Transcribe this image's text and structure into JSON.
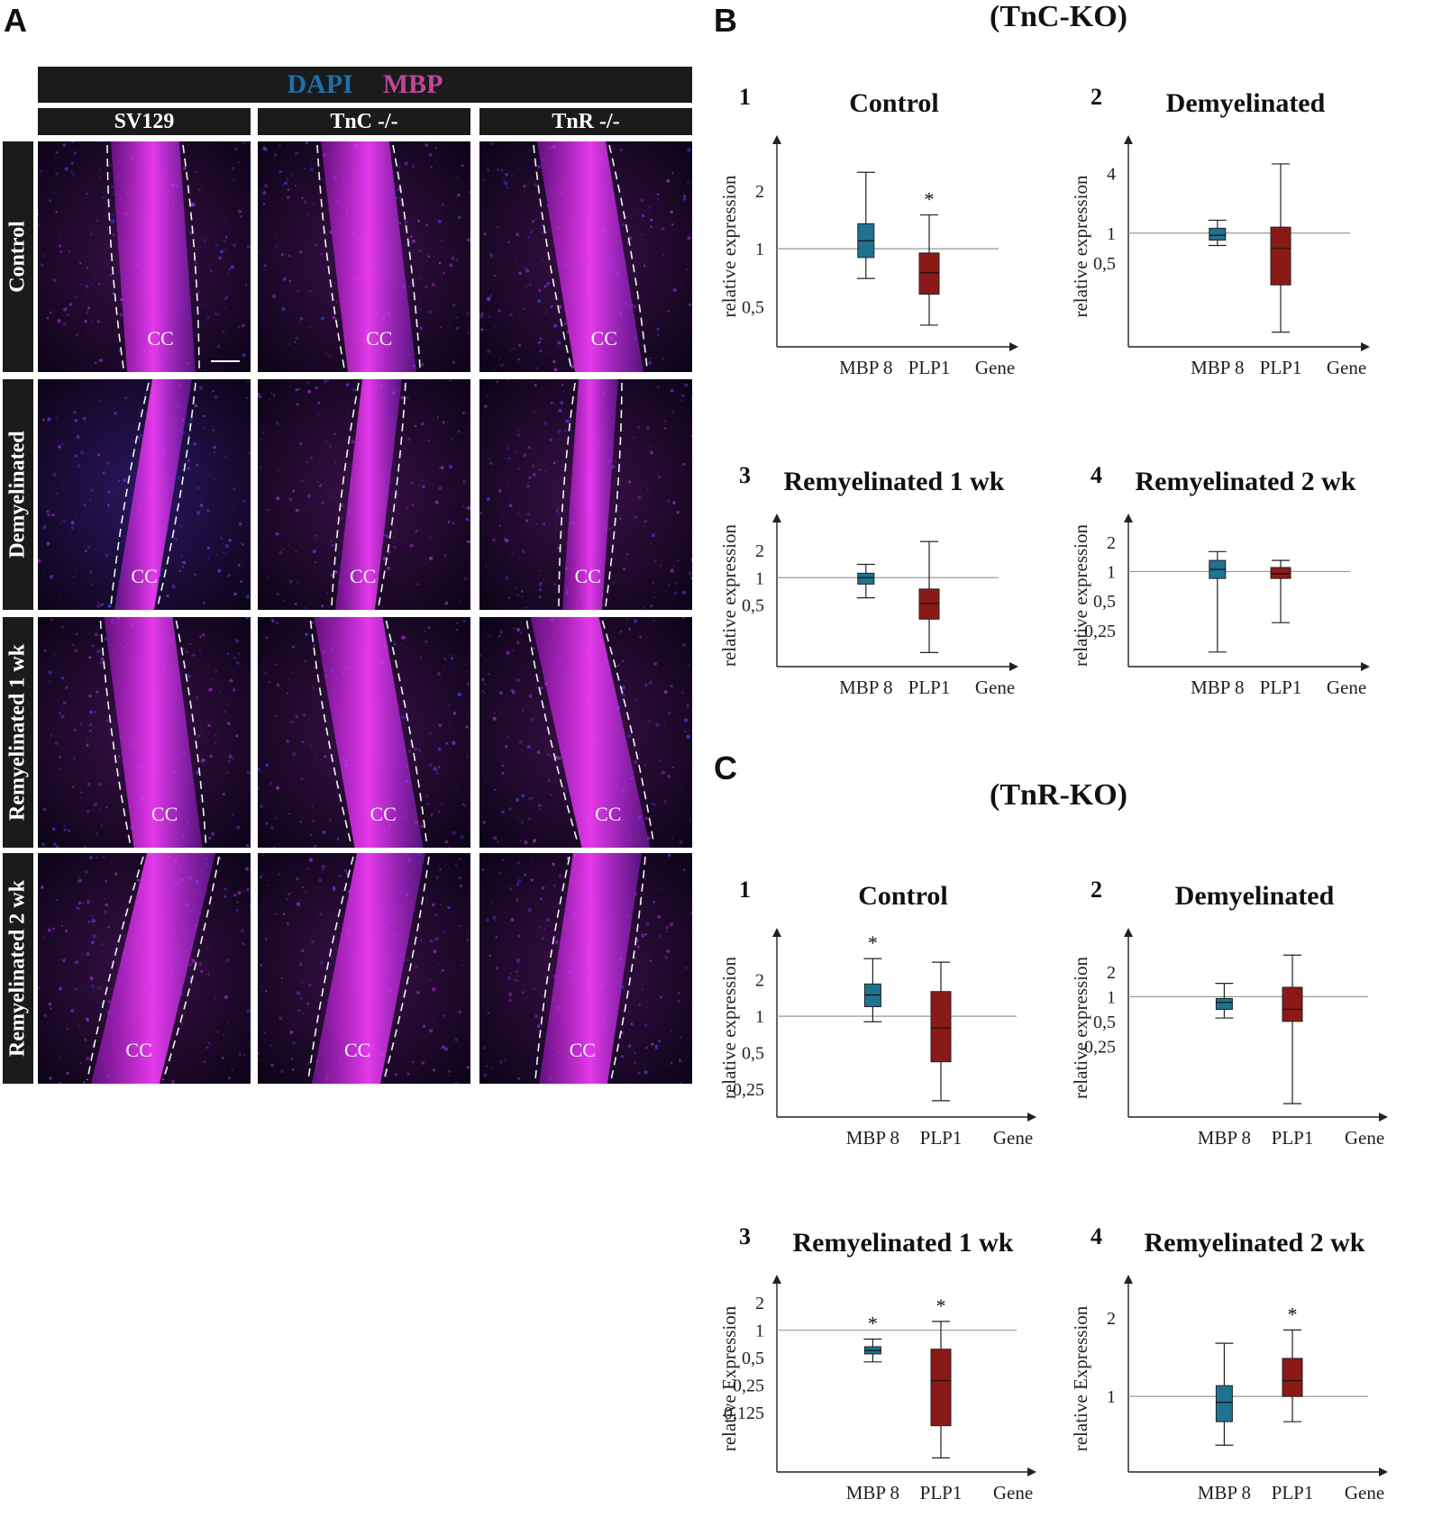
{
  "panel_a": {
    "letter": "A",
    "legend": {
      "dapi": "DAPI",
      "mbp": "MBP"
    },
    "columns": [
      "SV129",
      "TnC -/-",
      "TnR -/-"
    ],
    "rows": [
      "Control",
      "Demyelinated",
      "Remyelinated 1 wk",
      "Remyelinated 2 wk"
    ],
    "region_label": "CC"
  },
  "panel_b": {
    "letter": "B",
    "title": "(TnC-KO)"
  },
  "panel_c": {
    "letter": "C",
    "title": "(TnR-KO)"
  },
  "colors": {
    "mbp_box": "#1f7390",
    "plp_box": "#8b1a17",
    "dapi_text": "#1f6ea8",
    "mbp_text": "#c0469a"
  },
  "chart_data": [
    {
      "type": "box",
      "panel": "B",
      "number": "1",
      "title": "Control",
      "ylabel": "relative expression",
      "xlabel": "Gene",
      "categories": [
        "MBP 8",
        "PLP1"
      ],
      "yticks": [
        "2",
        "1",
        "0,5"
      ],
      "boxes": [
        {
          "min": 0.7,
          "q1": 0.9,
          "median": 1.1,
          "q3": 1.35,
          "max": 2.5
        },
        {
          "min": 0.4,
          "q1": 0.58,
          "median": 0.75,
          "q3": 0.95,
          "max": 1.5,
          "sig": "*"
        }
      ]
    },
    {
      "type": "box",
      "panel": "B",
      "number": "2",
      "title": "Demyelinated",
      "ylabel": "relative expression",
      "xlabel": "Gene",
      "categories": [
        "MBP 8",
        "PLP1"
      ],
      "yticks": [
        "4",
        "1",
        "0,5"
      ],
      "boxes": [
        {
          "min": 0.75,
          "q1": 0.85,
          "median": 0.95,
          "q3": 1.12,
          "max": 1.35
        },
        {
          "min": 0.1,
          "q1": 0.3,
          "median": 0.7,
          "q3": 1.15,
          "max": 5
        }
      ]
    },
    {
      "type": "box",
      "panel": "B",
      "number": "3",
      "title": "Remyelinated 1 wk",
      "ylabel": "relative expression",
      "xlabel": "Gene",
      "categories": [
        "MBP 8",
        "PLP1"
      ],
      "yticks": [
        "2",
        "1",
        "0,5"
      ],
      "boxes": [
        {
          "min": 0.6,
          "q1": 0.85,
          "median": 1.0,
          "q3": 1.12,
          "max": 1.4
        },
        {
          "min": 0.15,
          "q1": 0.35,
          "median": 0.52,
          "q3": 0.75,
          "max": 2.5
        }
      ]
    },
    {
      "type": "box",
      "panel": "B",
      "number": "4",
      "title": "Remyelinated 2 wk",
      "ylabel": "relative expression",
      "xlabel": "Gene",
      "categories": [
        "MBP 8",
        "PLP1"
      ],
      "yticks": [
        "2",
        "1",
        "0,5",
        "0,25"
      ],
      "boxes": [
        {
          "min": 0.15,
          "q1": 0.85,
          "median": 1.05,
          "q3": 1.3,
          "max": 1.6
        },
        {
          "min": 0.3,
          "q1": 0.85,
          "median": 0.95,
          "q3": 1.1,
          "max": 1.3
        }
      ]
    },
    {
      "type": "box",
      "panel": "C",
      "number": "1",
      "title": "Control",
      "ylabel": "relative expression",
      "xlabel": "Gene",
      "categories": [
        "MBP 8",
        "PLP1"
      ],
      "yticks": [
        "2",
        "1",
        "0,5",
        "0,25"
      ],
      "boxes": [
        {
          "min": 0.9,
          "q1": 1.2,
          "median": 1.5,
          "q3": 1.85,
          "max": 3.0,
          "sig": "*"
        },
        {
          "min": 0.2,
          "q1": 0.42,
          "median": 0.8,
          "q3": 1.6,
          "max": 2.8
        }
      ]
    },
    {
      "type": "box",
      "panel": "C",
      "number": "2",
      "title": "Demyelinated",
      "ylabel": "relative expression",
      "xlabel": "Gene",
      "categories": [
        "MBP 8",
        "PLP1"
      ],
      "yticks": [
        "2",
        "1",
        "0,5",
        "0,25"
      ],
      "boxes": [
        {
          "min": 0.55,
          "q1": 0.7,
          "median": 0.85,
          "q3": 0.95,
          "max": 1.45
        },
        {
          "min": 0.05,
          "q1": 0.5,
          "median": 0.7,
          "q3": 1.3,
          "max": 3.2
        }
      ]
    },
    {
      "type": "box",
      "panel": "C",
      "number": "3",
      "title": "Remyelinated 1 wk",
      "ylabel": "relative Expression",
      "xlabel": "Gene",
      "categories": [
        "MBP 8",
        "PLP1"
      ],
      "yticks": [
        "2",
        "1",
        "0,5",
        "0,25",
        "0,125"
      ],
      "boxes": [
        {
          "min": 0.45,
          "q1": 0.55,
          "median": 0.6,
          "q3": 0.66,
          "max": 0.8,
          "sig": "*"
        },
        {
          "min": 0.04,
          "q1": 0.09,
          "median": 0.28,
          "q3": 0.62,
          "max": 1.25,
          "sig": "*"
        }
      ]
    },
    {
      "type": "box",
      "panel": "C",
      "number": "4",
      "title": "Remyelinated 2 wk",
      "ylabel": "relative Expression",
      "xlabel": "Gene",
      "categories": [
        "MBP 8",
        "PLP1"
      ],
      "yticks": [
        "2",
        "1"
      ],
      "boxes": [
        {
          "min": 0.65,
          "q1": 0.8,
          "median": 0.95,
          "q3": 1.1,
          "max": 1.6
        },
        {
          "min": 0.8,
          "q1": 1.0,
          "median": 1.15,
          "q3": 1.4,
          "max": 1.8,
          "sig": "*"
        }
      ]
    }
  ]
}
